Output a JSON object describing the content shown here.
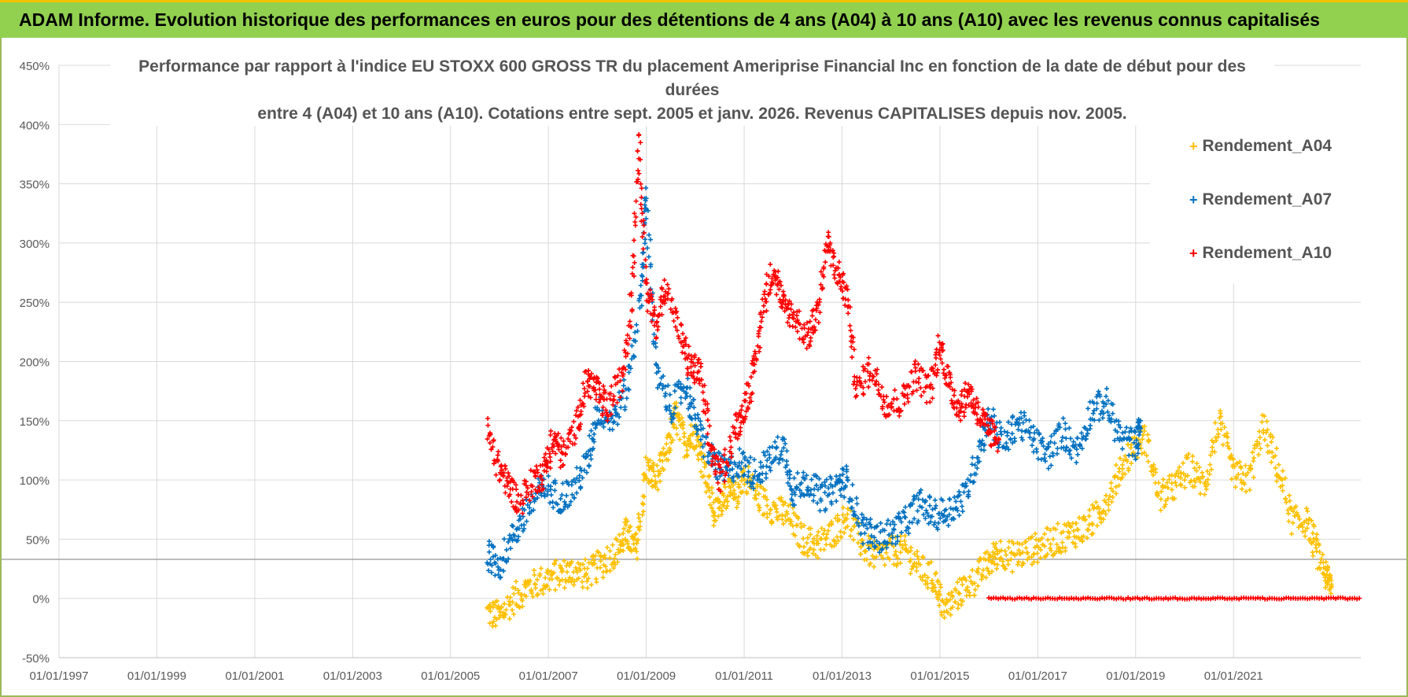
{
  "header": {
    "title": "ADAM Informe. Evolution historique des performances en euros pour des détentions de 4 ans (A04) à 10 ans (A10) avec les revenus connus capitalisés"
  },
  "chart_data": {
    "type": "scatter",
    "title_line1": "Performance par rapport à l'indice EU STOXX 600 GROSS TR  du placement Ameriprise Financial Inc en fonction de la date de début pour des durées",
    "title_line2": "entre 4 (A04) et 10 ans (A10).  Cotations entre sept. 2005 et janv. 2026. Revenus CAPITALISES depuis nov. 2005.",
    "y_ticks": [
      "-50%",
      "0%",
      "50%",
      "100%",
      "150%",
      "200%",
      "250%",
      "300%",
      "350%",
      "400%",
      "450%"
    ],
    "y_values": [
      -50,
      0,
      50,
      100,
      150,
      200,
      250,
      300,
      350,
      400,
      450
    ],
    "ylim": [
      -50,
      450
    ],
    "x_ticks": [
      "01/01/1997",
      "01/01/1999",
      "01/01/2001",
      "01/01/2003",
      "01/01/2005",
      "01/01/2007",
      "01/01/2009",
      "01/01/2011",
      "01/01/2013",
      "01/01/2015",
      "01/01/2017",
      "01/01/2019",
      "01/01/2021"
    ],
    "x_tick_years": [
      1997,
      1999,
      2001,
      2003,
      2005,
      2007,
      2009,
      2011,
      2013,
      2015,
      2017,
      2019,
      2021
    ],
    "xlim": [
      1997.0,
      2023.6
    ],
    "reference_line_y": 33,
    "series": [
      {
        "name": "Rendement_A04",
        "color": "#ffc000",
        "points": [
          [
            2005.75,
            -12
          ],
          [
            2006.0,
            -15
          ],
          [
            2006.3,
            0
          ],
          [
            2006.6,
            10
          ],
          [
            2006.9,
            15
          ],
          [
            2007.2,
            20
          ],
          [
            2007.5,
            23
          ],
          [
            2007.8,
            20
          ],
          [
            2008.1,
            30
          ],
          [
            2008.4,
            40
          ],
          [
            2008.6,
            55
          ],
          [
            2008.8,
            40
          ],
          [
            2009.0,
            110
          ],
          [
            2009.2,
            100
          ],
          [
            2009.4,
            120
          ],
          [
            2009.6,
            155
          ],
          [
            2009.8,
            130
          ],
          [
            2010.0,
            140
          ],
          [
            2010.2,
            110
          ],
          [
            2010.4,
            70
          ],
          [
            2010.6,
            90
          ],
          [
            2010.8,
            85
          ],
          [
            2011.0,
            105
          ],
          [
            2011.3,
            85
          ],
          [
            2011.6,
            75
          ],
          [
            2011.9,
            70
          ],
          [
            2012.2,
            50
          ],
          [
            2012.5,
            45
          ],
          [
            2012.8,
            55
          ],
          [
            2013.1,
            70
          ],
          [
            2013.4,
            45
          ],
          [
            2013.7,
            35
          ],
          [
            2014.0,
            40
          ],
          [
            2014.3,
            40
          ],
          [
            2014.6,
            25
          ],
          [
            2014.9,
            15
          ],
          [
            2015.1,
            -10
          ],
          [
            2015.4,
            5
          ],
          [
            2015.7,
            15
          ],
          [
            2016.0,
            30
          ],
          [
            2016.2,
            40
          ],
          [
            2016.5,
            35
          ],
          [
            2016.8,
            40
          ],
          [
            2017.1,
            45
          ],
          [
            2017.4,
            50
          ],
          [
            2017.7,
            55
          ],
          [
            2018.0,
            60
          ],
          [
            2018.3,
            75
          ],
          [
            2018.6,
            100
          ],
          [
            2018.9,
            125
          ],
          [
            2019.2,
            135
          ],
          [
            2019.5,
            85
          ],
          [
            2019.8,
            95
          ],
          [
            2020.1,
            110
          ],
          [
            2020.4,
            95
          ],
          [
            2020.7,
            150
          ],
          [
            2021.0,
            105
          ],
          [
            2021.3,
            100
          ],
          [
            2021.6,
            145
          ],
          [
            2021.9,
            110
          ],
          [
            2022.2,
            65
          ],
          [
            2022.5,
            65
          ],
          [
            2022.7,
            40
          ],
          [
            2022.9,
            18
          ],
          [
            2023.0,
            12
          ]
        ]
      },
      {
        "name": "Rendement_A07",
        "color": "#0070c0",
        "points": [
          [
            2005.75,
            38
          ],
          [
            2006.0,
            28
          ],
          [
            2006.3,
            55
          ],
          [
            2006.6,
            75
          ],
          [
            2006.9,
            95
          ],
          [
            2007.2,
            85
          ],
          [
            2007.5,
            90
          ],
          [
            2007.8,
            115
          ],
          [
            2008.0,
            160
          ],
          [
            2008.3,
            150
          ],
          [
            2008.6,
            175
          ],
          [
            2008.9,
            260
          ],
          [
            2009.0,
            340
          ],
          [
            2009.2,
            190
          ],
          [
            2009.5,
            160
          ],
          [
            2009.8,
            180
          ],
          [
            2010.0,
            150
          ],
          [
            2010.3,
            120
          ],
          [
            2010.6,
            105
          ],
          [
            2010.9,
            115
          ],
          [
            2011.2,
            105
          ],
          [
            2011.5,
            115
          ],
          [
            2011.8,
            130
          ],
          [
            2012.0,
            90
          ],
          [
            2012.3,
            100
          ],
          [
            2012.6,
            85
          ],
          [
            2012.9,
            95
          ],
          [
            2013.1,
            100
          ],
          [
            2013.4,
            60
          ],
          [
            2013.7,
            50
          ],
          [
            2014.0,
            55
          ],
          [
            2014.3,
            65
          ],
          [
            2014.6,
            80
          ],
          [
            2014.9,
            70
          ],
          [
            2015.2,
            75
          ],
          [
            2015.5,
            85
          ],
          [
            2015.8,
            125
          ],
          [
            2016.0,
            155
          ],
          [
            2016.3,
            130
          ],
          [
            2016.6,
            150
          ],
          [
            2016.9,
            135
          ],
          [
            2017.2,
            120
          ],
          [
            2017.5,
            140
          ],
          [
            2017.8,
            125
          ],
          [
            2018.1,
            160
          ],
          [
            2018.4,
            165
          ],
          [
            2018.7,
            135
          ],
          [
            2019.0,
            130
          ],
          [
            2019.1,
            150
          ]
        ]
      },
      {
        "name": "Rendement_A10",
        "color": "#ff0000",
        "points": [
          [
            2005.75,
            140
          ],
          [
            2006.0,
            110
          ],
          [
            2006.2,
            95
          ],
          [
            2006.4,
            80
          ],
          [
            2006.7,
            100
          ],
          [
            2006.9,
            105
          ],
          [
            2007.1,
            135
          ],
          [
            2007.3,
            120
          ],
          [
            2007.6,
            150
          ],
          [
            2007.8,
            185
          ],
          [
            2008.0,
            175
          ],
          [
            2008.2,
            160
          ],
          [
            2008.5,
            185
          ],
          [
            2008.7,
            250
          ],
          [
            2008.85,
            390
          ],
          [
            2009.0,
            260
          ],
          [
            2009.2,
            230
          ],
          [
            2009.4,
            265
          ],
          [
            2009.7,
            220
          ],
          [
            2009.9,
            195
          ],
          [
            2010.1,
            190
          ],
          [
            2010.3,
            130
          ],
          [
            2010.5,
            100
          ],
          [
            2010.8,
            140
          ],
          [
            2011.0,
            160
          ],
          [
            2011.2,
            190
          ],
          [
            2011.4,
            250
          ],
          [
            2011.6,
            280
          ],
          [
            2011.8,
            245
          ],
          [
            2012.0,
            240
          ],
          [
            2012.3,
            220
          ],
          [
            2012.5,
            240
          ],
          [
            2012.7,
            300
          ],
          [
            2012.9,
            275
          ],
          [
            2013.1,
            255
          ],
          [
            2013.3,
            175
          ],
          [
            2013.6,
            195
          ],
          [
            2013.9,
            165
          ],
          [
            2014.2,
            165
          ],
          [
            2014.5,
            190
          ],
          [
            2014.8,
            175
          ],
          [
            2015.0,
            215
          ],
          [
            2015.2,
            180
          ],
          [
            2015.4,
            160
          ],
          [
            2015.6,
            175
          ],
          [
            2015.8,
            155
          ],
          [
            2016.0,
            140
          ],
          [
            2016.2,
            135
          ]
        ]
      },
      {
        "name": "Rendement_A10 (0%)",
        "color": "#ff0000",
        "flat": {
          "y": 0,
          "x_start": 2016.0,
          "x_end": 2023.6
        }
      }
    ],
    "legend": {
      "position": "top-right",
      "entries": [
        "Rendement_A04",
        "Rendement_A07",
        "Rendement_A10"
      ],
      "colors": [
        "#ffc000",
        "#0070c0",
        "#ff0000"
      ],
      "marker": "+"
    }
  }
}
